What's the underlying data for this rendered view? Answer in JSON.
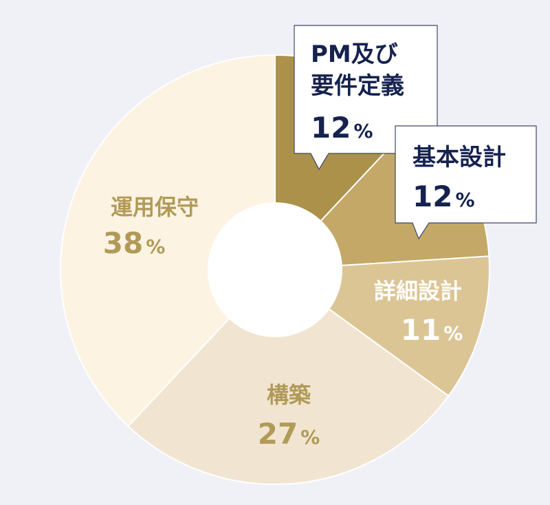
{
  "chart_data": {
    "type": "pie",
    "donut": true,
    "start": "top, clockwise",
    "unit": "%",
    "slices": [
      {
        "name": "PM及び要件定義",
        "name_lines": [
          "PM及び",
          "要件定義"
        ],
        "value": 12,
        "color": "#ac914a",
        "label_style": "callout"
      },
      {
        "name": "基本設計",
        "name_lines": [
          "基本設計"
        ],
        "value": 12,
        "color": "#c3a867",
        "label_style": "callout"
      },
      {
        "name": "詳細設計",
        "name_lines": [
          "詳細設計"
        ],
        "value": 11,
        "color": "#dcc595",
        "label_style": "inside"
      },
      {
        "name": "構築",
        "name_lines": [
          "構築"
        ],
        "value": 27,
        "color": "#f1e5d1",
        "label_style": "inside"
      },
      {
        "name": "運用保守",
        "name_lines": [
          "運用保守"
        ],
        "value": 38,
        "color": "#fdf3e3",
        "label_style": "inside"
      }
    ],
    "colors": {
      "background": "#f0f1f7",
      "callout_text": "#15224f",
      "light_slice_text": "#ffffff",
      "pale_slice_text": "#b09a57"
    }
  }
}
